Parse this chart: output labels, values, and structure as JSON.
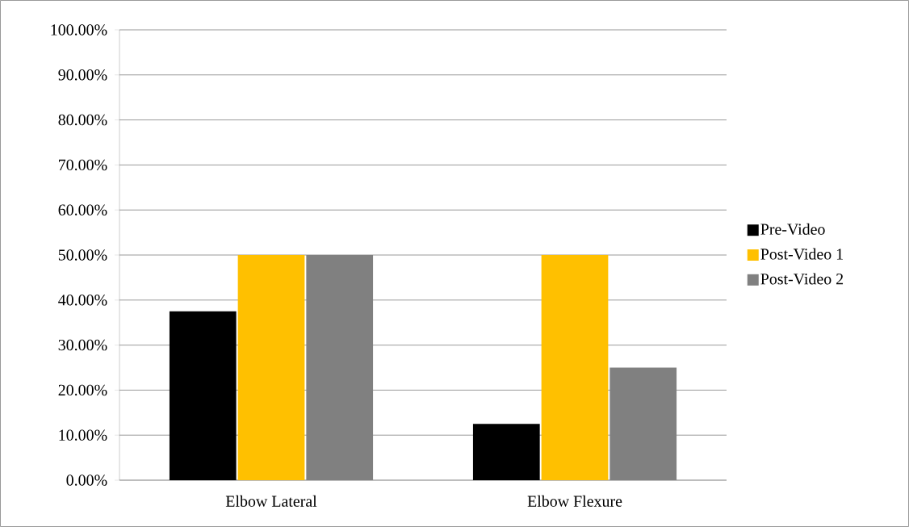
{
  "chart_data": {
    "type": "bar",
    "categories": [
      "Elbow Lateral",
      "Elbow Flexure"
    ],
    "series": [
      {
        "name": "Pre-Video",
        "color": "#000000",
        "values": [
          37.5,
          12.5
        ]
      },
      {
        "name": "Post-Video 1",
        "color": "#ffc000",
        "values": [
          50,
          50
        ]
      },
      {
        "name": "Post-Video 2",
        "color": "#808080",
        "values": [
          50,
          25
        ]
      }
    ],
    "ylim": [
      0,
      100
    ],
    "yticks": [
      {
        "value": 0,
        "label": "0.00%"
      },
      {
        "value": 10,
        "label": "10.00%"
      },
      {
        "value": 20,
        "label": "20.00%"
      },
      {
        "value": 30,
        "label": "30.00%"
      },
      {
        "value": 40,
        "label": "40.00%"
      },
      {
        "value": 50,
        "label": "50.00%"
      },
      {
        "value": 60,
        "label": "60.00%"
      },
      {
        "value": 70,
        "label": "70.00%"
      },
      {
        "value": 80,
        "label": "80.00%"
      },
      {
        "value": 90,
        "label": "90.00%"
      },
      {
        "value": 100,
        "label": "100.00%"
      }
    ],
    "grid": "y",
    "legend": "right"
  }
}
